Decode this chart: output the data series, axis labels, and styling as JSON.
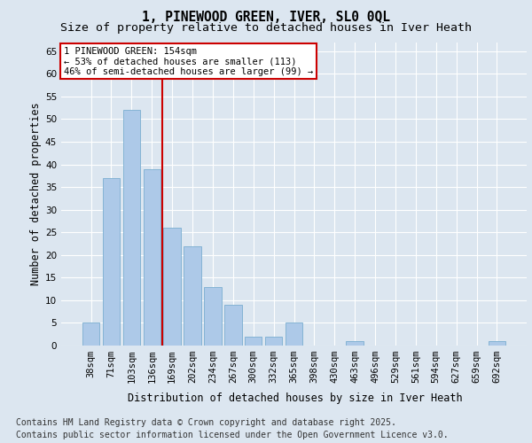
{
  "title_line1": "1, PINEWOOD GREEN, IVER, SL0 0QL",
  "title_line2": "Size of property relative to detached houses in Iver Heath",
  "xlabel": "Distribution of detached houses by size in Iver Heath",
  "ylabel": "Number of detached properties",
  "categories": [
    "38sqm",
    "71sqm",
    "103sqm",
    "136sqm",
    "169sqm",
    "202sqm",
    "234sqm",
    "267sqm",
    "300sqm",
    "332sqm",
    "365sqm",
    "398sqm",
    "430sqm",
    "463sqm",
    "496sqm",
    "529sqm",
    "561sqm",
    "594sqm",
    "627sqm",
    "659sqm",
    "692sqm"
  ],
  "values": [
    5,
    37,
    52,
    39,
    26,
    22,
    13,
    9,
    2,
    2,
    5,
    0,
    0,
    1,
    0,
    0,
    0,
    0,
    0,
    0,
    1
  ],
  "bar_color": "#adc9e8",
  "bar_edge_color": "#7aaed0",
  "vline_x": 3.5,
  "vline_color": "#cc0000",
  "annotation_line1": "1 PINEWOOD GREEN: 154sqm",
  "annotation_line2": "← 53% of detached houses are smaller (113)",
  "annotation_line3": "46% of semi-detached houses are larger (99) →",
  "annotation_box_color": "#cc0000",
  "annotation_bg": "#ffffff",
  "ylim": [
    0,
    67
  ],
  "yticks": [
    0,
    5,
    10,
    15,
    20,
    25,
    30,
    35,
    40,
    45,
    50,
    55,
    60,
    65
  ],
  "bg_color": "#dce6f0",
  "plot_bg": "#dce6f0",
  "footer_line1": "Contains HM Land Registry data © Crown copyright and database right 2025.",
  "footer_line2": "Contains public sector information licensed under the Open Government Licence v3.0.",
  "title_fontsize": 10.5,
  "subtitle_fontsize": 9.5,
  "axis_label_fontsize": 8.5,
  "tick_fontsize": 7.5,
  "footer_fontsize": 7
}
